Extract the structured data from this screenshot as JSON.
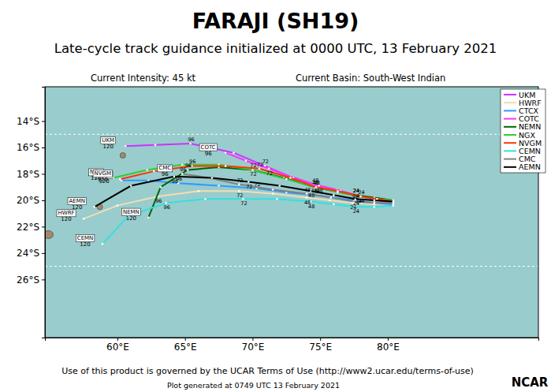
{
  "chart_data": {
    "type": "line",
    "title": "FARAJI (SH19)",
    "subtitle": "Late-cycle track guidance initialized at 0000 UTC, 13 February 2021",
    "annotations": [
      "Current Intensity: 45 kt",
      "Current Basin: South-West Indian",
      "Use of this product is governed by the UCAR Terms of Use (http://www2.ucar.edu/terms-of-use)",
      "Plot generated at 0749 UTC  13 February 2021",
      "NCAR"
    ],
    "xlim": [
      54.64,
      91.14
    ],
    "xticks": [
      {
        "value": 60,
        "label": "60°E"
      },
      {
        "value": 65,
        "label": "65°E"
      },
      {
        "value": 70,
        "label": "70°E"
      },
      {
        "value": 75,
        "label": "75°E"
      },
      {
        "value": 80,
        "label": "80°E"
      }
    ],
    "ylim": [
      -30.4,
      -11.4
    ],
    "yticks": [
      {
        "value": -14,
        "label": "14°S"
      },
      {
        "value": -16,
        "label": "16°S"
      },
      {
        "value": -18,
        "label": "18°S"
      },
      {
        "value": -20,
        "label": "20°S"
      },
      {
        "value": -22,
        "label": "22°S"
      },
      {
        "value": -24,
        "label": "24°S"
      },
      {
        "value": -26,
        "label": "26°S"
      }
    ],
    "grid": false,
    "legend": "upper right",
    "hours": [
      0,
      12,
      24,
      36,
      48,
      60,
      72,
      84,
      96,
      108,
      120
    ],
    "hour_labels": [
      24,
      48,
      72,
      96,
      120
    ],
    "reference_lats": [
      -15,
      -25
    ],
    "islands": [
      {
        "lon": 58.7,
        "lat": -20.5
      },
      {
        "lon": 54.9,
        "lat": -22.6
      },
      {
        "lon": 60.4,
        "lat": -16.6
      }
    ],
    "series": [
      {
        "name": "UKM",
        "color": "#cc33ff",
        "x": [
          80.4,
          79.0,
          77.6,
          76.2,
          74.6,
          72.8,
          70.9,
          68.6,
          65.4,
          62.8,
          60.6
        ],
        "values": [
          -20.2,
          -19.9,
          -19.6,
          -19.2,
          -18.8,
          -18.2,
          -17.4,
          -16.4,
          -15.7,
          -15.8,
          -15.9
        ]
      },
      {
        "name": "HWRF",
        "color": "#f0deb4",
        "x": [
          80.4,
          79.0,
          77.4,
          75.7,
          74.0,
          71.5,
          69.0,
          66.0,
          63.0,
          60.0,
          57.5
        ],
        "values": [
          -20.2,
          -20.3,
          -20.2,
          -20.0,
          -19.8,
          -19.5,
          -19.3,
          -19.3,
          -19.7,
          -20.4,
          -21.4
        ]
      },
      {
        "name": "CTCX",
        "color": "#3399ff",
        "x": [
          80.4,
          79.0,
          77.6,
          76.0,
          74.5,
          72.5,
          70.3,
          67.5,
          64.5,
          62.3,
          60.3
        ],
        "values": [
          -20.3,
          -20.2,
          -20.0,
          -19.8,
          -19.6,
          -19.4,
          -19.1,
          -18.9,
          -18.7,
          -18.5,
          -18.5
        ]
      },
      {
        "name": "COTC",
        "color": "#ff33ff",
        "x": [
          80.4,
          79.2,
          78.0,
          76.5,
          74.9,
          73.0,
          71.2,
          69.5,
          68.0,
          null,
          null
        ],
        "values": [
          -20.2,
          -20.0,
          -19.7,
          -19.3,
          -18.9,
          -18.3,
          -17.6,
          -17.0,
          -16.4,
          null,
          null
        ]
      },
      {
        "name": "NEMN",
        "color": "#006400",
        "x": [
          80.4,
          79.0,
          77.6,
          76.0,
          74.6,
          72.3,
          70.0,
          67.5,
          65.2,
          63.2,
          62.3
        ],
        "values": [
          -20.0,
          -19.8,
          -19.6,
          -19.3,
          -19.0,
          -18.3,
          -17.7,
          -17.5,
          -17.7,
          -19.0,
          -21.3
        ]
      },
      {
        "name": "NGX",
        "color": "#33cc33",
        "x": [
          80.4,
          79.2,
          77.8,
          76.3,
          74.7,
          72.5,
          70.0,
          67.5,
          64.8,
          62.2,
          59.7
        ],
        "values": [
          -20.0,
          -19.9,
          -19.7,
          -19.4,
          -19.0,
          -18.4,
          -17.7,
          -17.3,
          -17.3,
          -17.7,
          -18.3
        ]
      },
      {
        "name": "NVGM",
        "color": "#ff3300",
        "x": [
          80.4,
          79.2,
          78.0,
          76.3,
          74.7,
          72.8,
          70.5,
          68.0,
          65.5,
          62.7,
          60.2
        ],
        "values": [
          -20.1,
          -19.9,
          -19.7,
          -19.3,
          -19.0,
          -18.3,
          -17.6,
          -17.4,
          -17.4,
          -17.8,
          -18.4
        ]
      },
      {
        "name": "CEMN",
        "color": "#33e0e0",
        "x": [
          80.4,
          79.0,
          77.6,
          76.0,
          74.3,
          71.8,
          69.3,
          66.5,
          63.6,
          60.8,
          58.9
        ],
        "values": [
          -20.4,
          -20.5,
          -20.5,
          -20.3,
          -20.1,
          -19.9,
          -19.9,
          -19.9,
          -20.2,
          -21.2,
          -23.3
        ]
      },
      {
        "name": "CMC",
        "color": "#808080",
        "x": [
          80.4,
          79.0,
          77.5,
          75.8,
          74.0,
          71.5,
          69.0,
          66.8,
          64.8,
          null,
          null
        ],
        "values": [
          -20.2,
          -20.2,
          -20.1,
          -19.8,
          -19.5,
          -19.2,
          -18.8,
          -18.3,
          -18.0,
          null,
          null
        ]
      },
      {
        "name": "AEMN",
        "color": "#000000",
        "x": [
          80.4,
          79.0,
          77.6,
          76.0,
          74.3,
          72.0,
          69.7,
          67.0,
          64.2,
          61.0,
          58.3
        ],
        "values": [
          -20.1,
          -20.0,
          -19.9,
          -19.6,
          -19.3,
          -18.9,
          -18.6,
          -18.3,
          -18.2,
          -18.9,
          -20.5
        ]
      }
    ]
  }
}
